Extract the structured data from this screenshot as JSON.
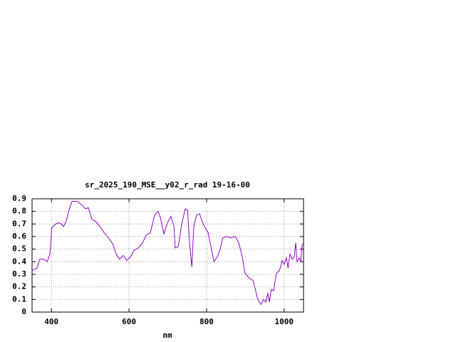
{
  "chart_data": {
    "type": "line",
    "title": "sr_2025_190_MSE__y02_r_rad 19-16-00",
    "x_label": "nm",
    "xlim": [
      350,
      1050
    ],
    "xticks": [
      400,
      600,
      800,
      1000
    ],
    "ylim": [
      0,
      0.9
    ],
    "yticks": [
      0,
      0.1,
      0.2,
      0.3,
      0.4,
      0.5,
      0.6,
      0.7,
      0.8,
      0.9
    ],
    "grid": true,
    "series": [
      {
        "color": "#9400d3",
        "x": [
          350,
          363,
          370,
          381,
          389,
          396,
          401,
          411,
          418,
          425,
          431,
          438,
          445,
          453,
          466,
          479,
          488,
          495,
          504,
          514,
          525,
          536,
          547,
          558,
          567,
          576,
          585,
          594,
          604,
          613,
          624,
          635,
          644,
          655,
          666,
          675,
          681,
          690,
          699,
          708,
          716,
          719,
          727,
          736,
          745,
          751,
          756,
          762,
          767,
          774,
          782,
          791,
          804,
          819,
          828,
          835,
          842,
          852,
          861,
          874,
          883,
          892,
          899,
          910,
          920,
          925,
          932,
          940,
          947,
          953,
          958,
          962,
          967,
          973,
          980,
          988,
          995,
          1000,
          1006,
          1010,
          1015,
          1021,
          1026,
          1030,
          1033,
          1039,
          1043,
          1046,
          1050
        ],
        "values": [
          0.33,
          0.35,
          0.42,
          0.42,
          0.4,
          0.46,
          0.67,
          0.7,
          0.71,
          0.7,
          0.68,
          0.72,
          0.81,
          0.88,
          0.88,
          0.85,
          0.82,
          0.83,
          0.74,
          0.72,
          0.68,
          0.63,
          0.59,
          0.54,
          0.46,
          0.42,
          0.45,
          0.41,
          0.44,
          0.49,
          0.51,
          0.55,
          0.61,
          0.63,
          0.77,
          0.8,
          0.75,
          0.62,
          0.71,
          0.76,
          0.68,
          0.51,
          0.52,
          0.7,
          0.82,
          0.81,
          0.55,
          0.36,
          0.68,
          0.77,
          0.78,
          0.7,
          0.63,
          0.4,
          0.44,
          0.5,
          0.59,
          0.6,
          0.59,
          0.6,
          0.55,
          0.44,
          0.31,
          0.27,
          0.25,
          0.19,
          0.1,
          0.06,
          0.1,
          0.08,
          0.15,
          0.08,
          0.18,
          0.17,
          0.31,
          0.33,
          0.41,
          0.38,
          0.43,
          0.35,
          0.46,
          0.42,
          0.44,
          0.55,
          0.4,
          0.43,
          0.4,
          0.53,
          0.55
        ]
      }
    ]
  }
}
